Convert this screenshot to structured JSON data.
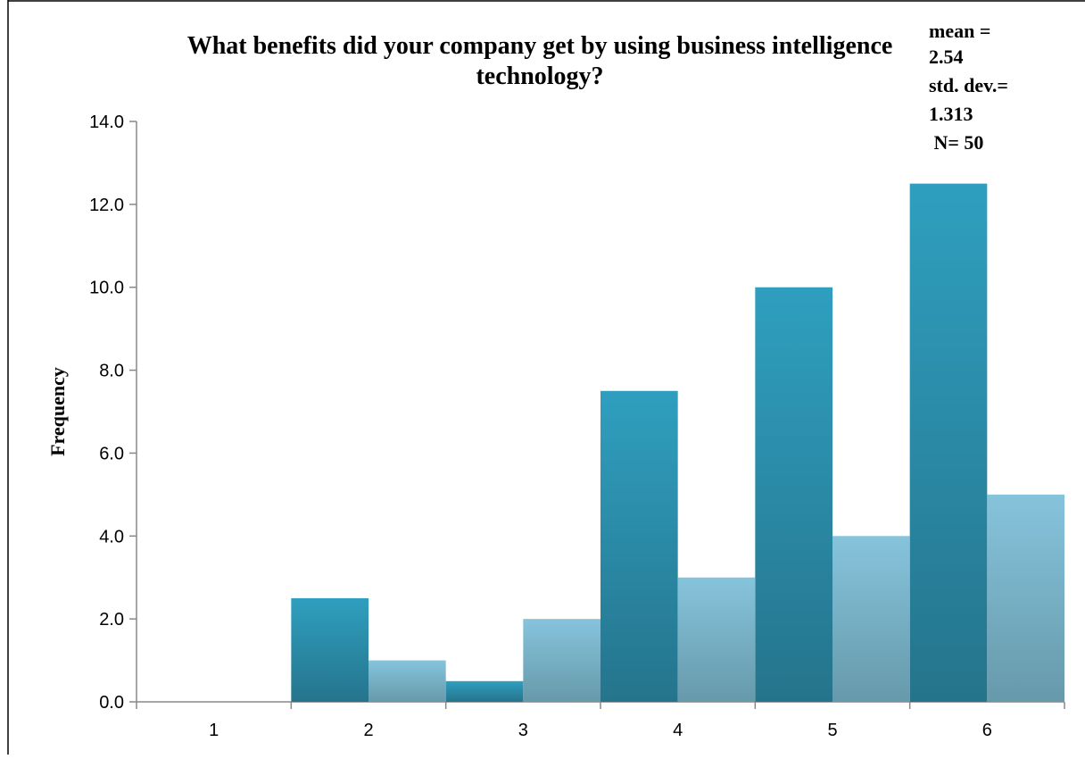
{
  "chart_data": {
    "type": "bar",
    "title": "What benefits did your company get by using business intelligence technology?",
    "title_lines": [
      "What benefits did your company get by using business intelligence",
      "technology?"
    ],
    "xlabel": "",
    "ylabel": "Frequency",
    "ylim": [
      0,
      14
    ],
    "yticks": [
      "0.0",
      "2.0",
      "4.0",
      "6.0",
      "8.0",
      "10.0",
      "12.0",
      "14.0"
    ],
    "ytick_values": [
      0,
      2,
      4,
      6,
      8,
      10,
      12,
      14
    ],
    "categories": [
      "1",
      "2",
      "3",
      "4",
      "5",
      "6"
    ],
    "grid": false,
    "legend": "none",
    "series": [
      {
        "values": [
          0,
          2.5,
          0.5,
          7.5,
          10,
          12.5
        ],
        "color_top": "#2f9fbf",
        "color_bottom": "#25748c"
      },
      {
        "values": [
          0,
          1,
          2,
          3,
          4,
          5
        ],
        "color_top": "#86c4dc",
        "color_bottom": "#6799ab"
      }
    ],
    "stats": [
      "mean =",
      "2.54",
      "std. dev.=",
      "1.313",
      " N= 50"
    ]
  }
}
